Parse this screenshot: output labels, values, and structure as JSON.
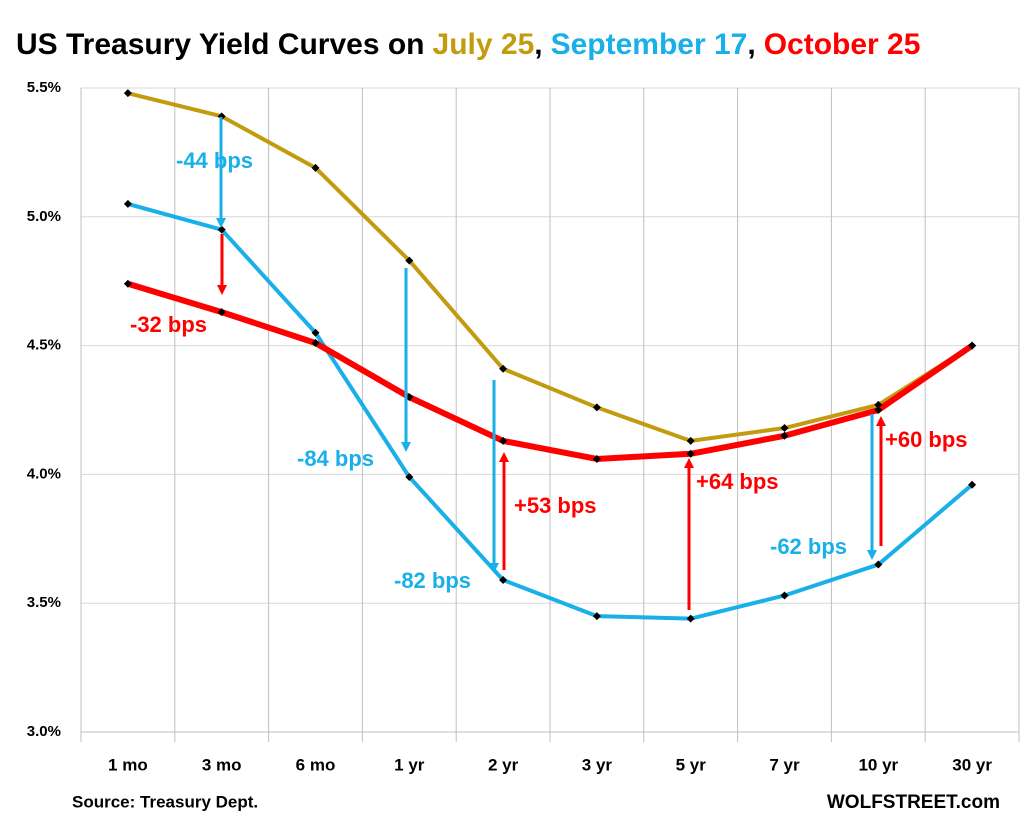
{
  "chart_data": {
    "type": "line",
    "title": "US Treasury Yield Curves on",
    "title_separator": ",",
    "categories": [
      "1 mo",
      "3 mo",
      "6 mo",
      "1 yr",
      "2 yr",
      "3 yr",
      "5 yr",
      "7 yr",
      "10 yr",
      "30 yr"
    ],
    "series": [
      {
        "name": "July 25",
        "color": "#c39b0f",
        "values": [
          5.48,
          5.39,
          5.19,
          4.83,
          4.41,
          4.26,
          4.13,
          4.18,
          4.27,
          4.5
        ]
      },
      {
        "name": "September 17",
        "color": "#19afe8",
        "values": [
          5.05,
          4.95,
          4.55,
          3.99,
          3.59,
          3.45,
          3.44,
          3.53,
          3.65,
          3.96
        ]
      },
      {
        "name": "October 25",
        "color": "#ff0000",
        "values": [
          4.74,
          4.63,
          4.51,
          4.3,
          4.13,
          4.06,
          4.08,
          4.15,
          4.25,
          4.5
        ]
      }
    ],
    "ylim": [
      3.0,
      5.5
    ],
    "yticks": [
      {
        "value": 3.0,
        "label": "3.0%"
      },
      {
        "value": 3.5,
        "label": "3.5%"
      },
      {
        "value": 4.0,
        "label": "4.0%"
      },
      {
        "value": 4.5,
        "label": "4.5%"
      },
      {
        "value": 5.0,
        "label": "5.0%"
      },
      {
        "value": 5.5,
        "label": "5.5%"
      }
    ],
    "grid": true,
    "annotations": [
      {
        "text": "-44 bps",
        "color": "#19afe8"
      },
      {
        "text": "-32 bps",
        "color": "#ff0000"
      },
      {
        "text": "-84 bps",
        "color": "#19afe8"
      },
      {
        "text": "-82 bps",
        "color": "#19afe8"
      },
      {
        "text": "+53 bps",
        "color": "#ff0000"
      },
      {
        "text": "+64 bps",
        "color": "#ff0000"
      },
      {
        "text": "-62 bps",
        "color": "#19afe8"
      },
      {
        "text": "+60 bps",
        "color": "#ff0000"
      }
    ],
    "source": "Source: Treasury Dept.",
    "credit": "WOLFSTREET.com"
  }
}
